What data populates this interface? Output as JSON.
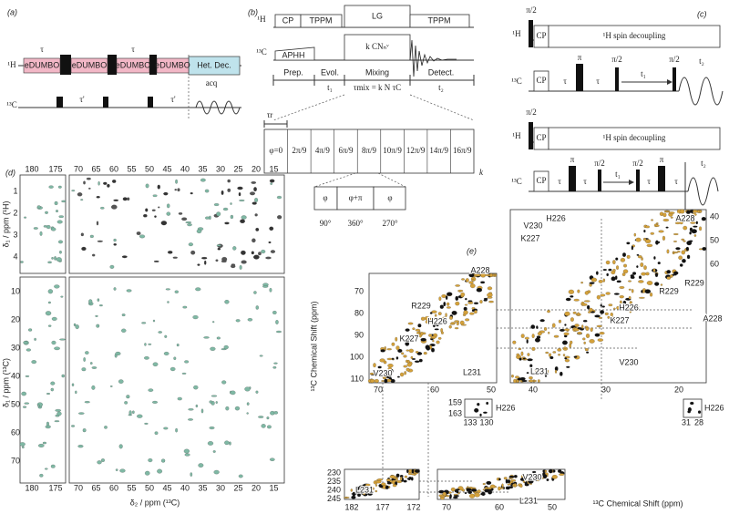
{
  "panel_a": {
    "label": "(a)",
    "nuclei": [
      "¹H",
      "¹³C"
    ],
    "blocks": [
      "eDUMBO",
      "eDUMBO",
      "eDUMBO",
      "eDUMBO"
    ],
    "decoupling": "Het. Dec.",
    "delays": [
      "τ",
      "τ",
      "τ'",
      "τ'"
    ],
    "acquisition": "acq"
  },
  "panel_b": {
    "label": "(b)",
    "nuclei": [
      "¹H",
      "¹³C"
    ],
    "h_blocks": [
      "CP",
      "TPPM",
      "LG",
      "TPPM"
    ],
    "c_blocks": [
      "APHH",
      "k CNₙᵛ"
    ],
    "periods": [
      "Prep.",
      "Evol.",
      "Mixing",
      "Detect."
    ],
    "times": [
      "t₁",
      "τmix = k N τC",
      "t₂"
    ],
    "rotor_period": "τr",
    "phases": [
      "φ=0",
      "2π/9",
      "4π/9",
      "6π/9",
      "8π/9",
      "10π/9",
      "12π/9",
      "14π/9",
      "16π/9"
    ],
    "repeat": "k",
    "sub_phases": [
      "φ",
      "φ+π",
      "φ"
    ],
    "angles": [
      "90°",
      "360°",
      "270°"
    ]
  },
  "panel_c": {
    "label": "(c)",
    "nuclei": [
      "¹H",
      "¹³C"
    ],
    "flip": "π/2",
    "cp": "CP",
    "decoupling": "¹H spin decoupling",
    "tau": "τ",
    "pi": "π",
    "t1": "t₁",
    "t2": "t₂"
  },
  "panel_d": {
    "label": "(d)",
    "x_ticks_left": [
      180,
      175
    ],
    "x_ticks_right": [
      70,
      65,
      60,
      55,
      50,
      45,
      40,
      35,
      30,
      25,
      20,
      15
    ],
    "x_label": "δ₂ / ppm (¹³C)",
    "y_label_top": "δ₁ / ppm (¹H)",
    "y_label_bottom": "δ₁ / ppm (¹³C)",
    "y_ticks_top": [
      1,
      2,
      3,
      4
    ],
    "y_ticks_bottom": [
      10,
      20,
      30,
      40,
      50,
      60,
      70
    ]
  },
  "panel_e": {
    "label": "(e)",
    "axis_label": "¹³C Chemical Shift (ppm)",
    "box1": {
      "y_ticks": [
        70,
        80,
        90,
        100,
        110
      ],
      "x_ticks": [
        70,
        60,
        50
      ]
    },
    "box2": {
      "y_ticks": [
        40,
        50,
        60
      ],
      "x_ticks": [
        40,
        30,
        20
      ]
    },
    "inset1": {
      "y_ticks": [
        159,
        163
      ],
      "x_ticks": [
        133,
        130
      ],
      "label": "H226"
    },
    "inset2": {
      "x_ticks": [
        31,
        28
      ],
      "label": "H226"
    },
    "box3": {
      "y_ticks": [
        230,
        235,
        240,
        245
      ],
      "x_ticks": [
        182,
        177,
        172
      ]
    },
    "box4": {
      "x_ticks": [
        70,
        60,
        50
      ]
    },
    "residues": [
      "A228",
      "R229",
      "H226",
      "K227",
      "L231",
      "V230",
      "H226",
      "V230",
      "K227",
      "A228",
      "R229",
      "K227",
      "H226",
      "R229",
      "V230",
      "L231",
      "A228",
      "L231",
      "V230",
      "L231"
    ]
  }
}
